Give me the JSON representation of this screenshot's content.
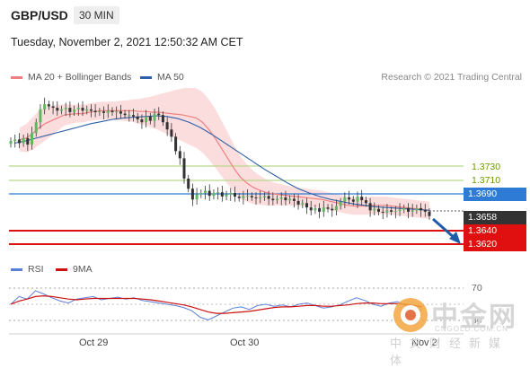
{
  "header": {
    "pair": "GBP/USD",
    "timeframe": "30 MIN"
  },
  "datetime": "Tuesday, November 2, 2021 12:50:32 AM CET",
  "legend": [
    {
      "label": "MA 20 + Bollinger Bands",
      "color": "#f08080"
    },
    {
      "label": "MA 50",
      "color": "#2e5fa8"
    }
  ],
  "copyright": "Research © 2021 Trading Central",
  "levels": {
    "res2": "1.3730",
    "res1": "1.3710",
    "pivot": "1.3690",
    "current": "1.3658",
    "sup1": "1.3640",
    "sup2": "1.3620"
  },
  "colors": {
    "pivot": "#2e7bd6",
    "support": "#e01010",
    "resistance": "#b8d88a",
    "current": "#333333",
    "arrow": "#1f5ca8"
  },
  "rsi_legend": [
    {
      "label": "RSI",
      "color": "#5b7fd6"
    },
    {
      "label": "9MA",
      "color": "#cc1111"
    }
  ],
  "rsi_levels": {
    "upper": "70",
    "lower": "30"
  },
  "x_labels": [
    "Oct 29",
    "Oct 30",
    "Nov 2"
  ],
  "watermark": {
    "main": "中金网",
    "url": "CNGOLD.COM.CN",
    "sub": "中文财经新媒体"
  },
  "chart_data": {
    "type": "candlestick",
    "y_axis_range": [
      1.3605,
      1.3845
    ],
    "closes": [
      1.3764,
      1.3766,
      1.3761,
      1.3768,
      1.3759,
      1.3775,
      1.379,
      1.3808,
      1.3815,
      1.3812,
      1.381,
      1.3806,
      1.3808,
      1.381,
      1.3804,
      1.3808,
      1.381,
      1.3806,
      1.3808,
      1.3806,
      1.3804,
      1.3805,
      1.3803,
      1.3806,
      1.3804,
      1.3805,
      1.3802,
      1.38,
      1.38,
      1.3798,
      1.3794,
      1.379,
      1.3798,
      1.3792,
      1.3802,
      1.38,
      1.379,
      1.378,
      1.377,
      1.375,
      1.374,
      1.3712,
      1.3698,
      1.3683,
      1.369,
      1.3692,
      1.3695,
      1.3688,
      1.3692,
      1.3693,
      1.3687,
      1.369,
      1.3692,
      1.3687,
      1.3685,
      1.3688,
      1.3688,
      1.3686,
      1.3685,
      1.3686,
      1.3688,
      1.3684,
      1.3682,
      1.3684,
      1.3686,
      1.3682,
      1.3684,
      1.3681,
      1.3676,
      1.3678,
      1.3672,
      1.3668,
      1.3671,
      1.3666,
      1.3672,
      1.367,
      1.3668,
      1.3674,
      1.368,
      1.3686,
      1.3683,
      1.368,
      1.3687,
      1.3682,
      1.3678,
      1.3668,
      1.367,
      1.3666,
      1.3665,
      1.3668,
      1.3666,
      1.3667,
      1.3669,
      1.3671,
      1.3666,
      1.3668,
      1.3671,
      1.3668,
      1.3666,
      1.366
    ],
    "ma20": [
      1.3766,
      1.3768,
      1.3774,
      1.3782,
      1.3788,
      1.3792,
      1.3796,
      1.38,
      1.3801,
      1.3802,
      1.3802,
      1.3804,
      1.3805,
      1.3806,
      1.3806,
      1.3806,
      1.3806,
      1.3806,
      1.3806,
      1.3805,
      1.3805,
      1.3804,
      1.3804,
      1.3803,
      1.3802,
      1.3801,
      1.38,
      1.3798,
      1.3796,
      1.379,
      1.378,
      1.3768,
      1.3754,
      1.374,
      1.3726,
      1.3714,
      1.3706,
      1.37,
      1.3696,
      1.3693,
      1.3691,
      1.369,
      1.3689,
      1.3688,
      1.3687,
      1.3686,
      1.3685,
      1.3684,
      1.3683,
      1.3681,
      1.3679,
      1.3677,
      1.3675,
      1.3674,
      1.3674,
      1.3674,
      1.3675,
      1.3675,
      1.3675,
      1.3674,
      1.3673,
      1.3672,
      1.3671,
      1.367,
      1.3669,
      1.3668
    ],
    "ma50": [
      1.3761,
      1.3764,
      1.3768,
      1.3772,
      1.3776,
      1.378,
      1.3784,
      1.3788,
      1.3791,
      1.3794,
      1.3796,
      1.3797,
      1.3798,
      1.3799,
      1.3798,
      1.3795,
      1.379,
      1.3783,
      1.3774,
      1.3764,
      1.3754,
      1.3744,
      1.3734,
      1.3724,
      1.3715,
      1.3706,
      1.3698,
      1.3692,
      1.3687,
      1.3683,
      1.368,
      1.3677,
      1.3675,
      1.3673,
      1.3672,
      1.3671,
      1.367,
      1.3669,
      1.3668
    ],
    "rsi": [
      50,
      62,
      58,
      71,
      66,
      60,
      55,
      52,
      58,
      60,
      62,
      57,
      59,
      61,
      58,
      60,
      56,
      54,
      52,
      50,
      48,
      45,
      40,
      30,
      26,
      32,
      38,
      44,
      46,
      42,
      48,
      50,
      47,
      49,
      46,
      50,
      52,
      48,
      44,
      46,
      49,
      55,
      60,
      56,
      50,
      47,
      52,
      54,
      48,
      44,
      40
    ],
    "rsi_ma": [
      50,
      55,
      58,
      62,
      63,
      62,
      60,
      58,
      57,
      58,
      59,
      59,
      59,
      59,
      59,
      59,
      58,
      57,
      55,
      53,
      51,
      49,
      46,
      42,
      38,
      36,
      36,
      37,
      38,
      39,
      41,
      43,
      45,
      46,
      46,
      47,
      48,
      48,
      47,
      47,
      48,
      49,
      51,
      52,
      52,
      51,
      51,
      51,
      50,
      48,
      46
    ]
  }
}
